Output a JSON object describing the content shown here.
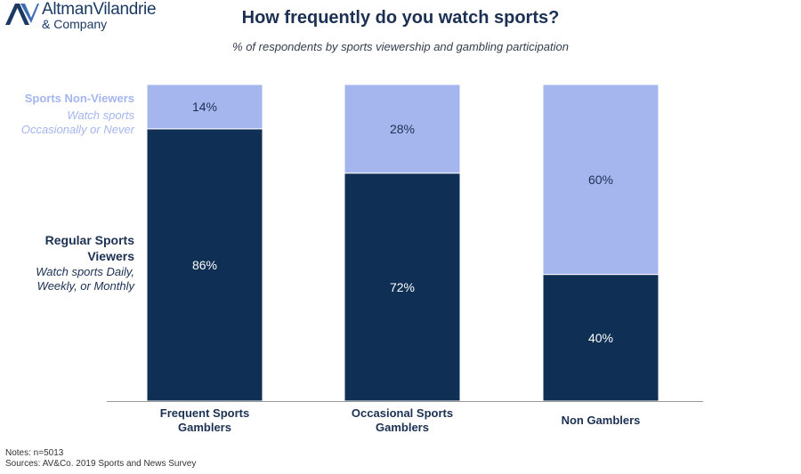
{
  "logo": {
    "line1": "AltmanVilandrie",
    "line2": "& Company"
  },
  "header": {
    "title": "How frequently do you watch sports?",
    "subtitle": "% of respondents by sports viewership and gambling participation"
  },
  "legend": {
    "non_viewers": {
      "heading": "Sports Non-Viewers",
      "sub1": "Watch sports",
      "sub2": "Occasionally or Never",
      "color": "#a5b6ee"
    },
    "regular_viewers": {
      "heading1": "Regular Sports",
      "heading2": "Viewers",
      "sub1": "Watch sports Daily,",
      "sub2": "Weekly, or Monthly",
      "color": "#0f3054"
    }
  },
  "footer": {
    "notes": "Notes: n=5013",
    "sources": "Sources: AV&Co. 2019 Sports and News Survey"
  },
  "colors": {
    "dark": "#0f3054",
    "light": "#a5b6ee",
    "axis": "#999999",
    "label_dark": "#1b3052"
  },
  "chart_data": {
    "type": "bar",
    "stacked": true,
    "title": "How frequently do you watch sports?",
    "subtitle": "% of respondents by sports viewership and gambling participation",
    "categories": [
      [
        "Frequent Sports",
        "Gamblers"
      ],
      [
        "Occasional Sports",
        "Gamblers"
      ],
      [
        "Non Gamblers"
      ]
    ],
    "series": [
      {
        "name": "Regular Sports Viewers",
        "values": [
          86,
          72,
          40
        ],
        "color": "#0f3054",
        "label_color": "#ffffff"
      },
      {
        "name": "Sports Non-Viewers",
        "values": [
          14,
          28,
          60
        ],
        "color": "#a5b6ee",
        "label_color": "#1b3052"
      }
    ],
    "ylim": [
      0,
      100
    ],
    "unit": "%"
  }
}
